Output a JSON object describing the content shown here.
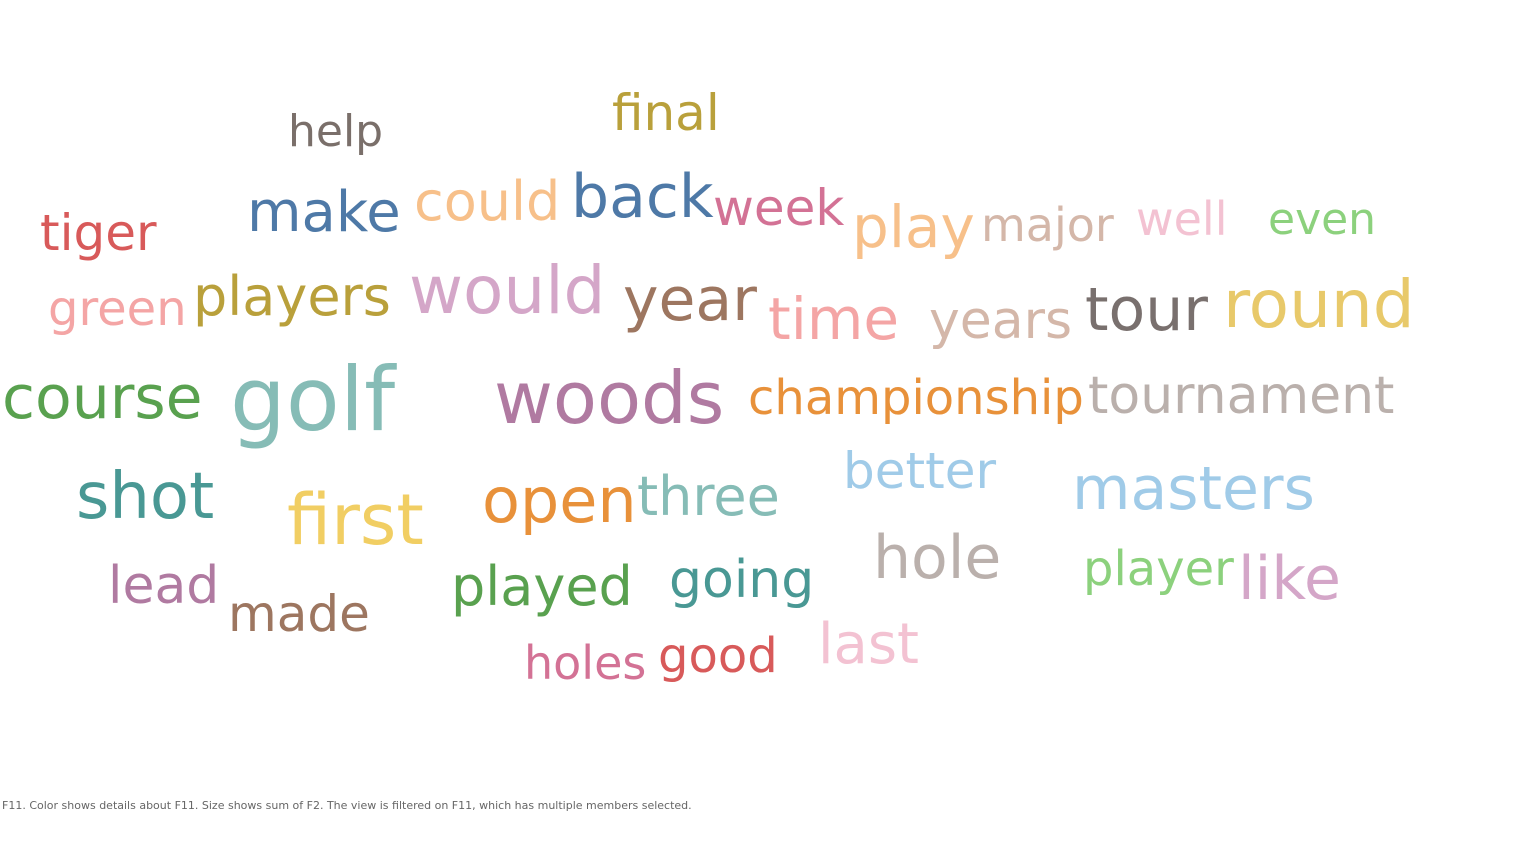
{
  "caption": "F11.  Color shows details about F11.  Size shows sum of F2. The view is filtered on F11, which has multiple members selected.",
  "chart_data": {
    "type": "word-cloud",
    "words": [
      {
        "text": "final",
        "color": "#b9a03b"
      },
      {
        "text": "help",
        "color": "#7a6f6a"
      },
      {
        "text": "tiger",
        "color": "#d85a5a"
      },
      {
        "text": "make",
        "color": "#4e79a7"
      },
      {
        "text": "could",
        "color": "#f7c08a"
      },
      {
        "text": "back",
        "color": "#4e79a7"
      },
      {
        "text": "week",
        "color": "#d37295"
      },
      {
        "text": "play",
        "color": "#f7c08a"
      },
      {
        "text": "major",
        "color": "#d4b7a9"
      },
      {
        "text": "well",
        "color": "#f3c2d2"
      },
      {
        "text": "even",
        "color": "#8cd17d"
      },
      {
        "text": "green",
        "color": "#f4a5a5"
      },
      {
        "text": "players",
        "color": "#b9a03b"
      },
      {
        "text": "would",
        "color": "#d4a6c8"
      },
      {
        "text": "year",
        "color": "#9d7660"
      },
      {
        "text": "time",
        "color": "#f4a5a5"
      },
      {
        "text": "years",
        "color": "#d4b7a9"
      },
      {
        "text": "tour",
        "color": "#79706e"
      },
      {
        "text": "round",
        "color": "#e8c96a"
      },
      {
        "text": "course",
        "color": "#59a14f"
      },
      {
        "text": "golf",
        "color": "#86bcb6"
      },
      {
        "text": "woods",
        "color": "#b07aa1"
      },
      {
        "text": "championship",
        "color": "#e8913a"
      },
      {
        "text": "tournament",
        "color": "#bab0ac"
      },
      {
        "text": "shot",
        "color": "#499894"
      },
      {
        "text": "first",
        "color": "#f1ce63"
      },
      {
        "text": "open",
        "color": "#e8913a"
      },
      {
        "text": "three",
        "color": "#86bcb6"
      },
      {
        "text": "better",
        "color": "#a0cbe8"
      },
      {
        "text": "masters",
        "color": "#a0cbe8"
      },
      {
        "text": "hole",
        "color": "#bab0ac"
      },
      {
        "text": "lead",
        "color": "#b07aa1"
      },
      {
        "text": "made",
        "color": "#9d7660"
      },
      {
        "text": "played",
        "color": "#59a14f"
      },
      {
        "text": "going",
        "color": "#499894"
      },
      {
        "text": "player",
        "color": "#8cd17d"
      },
      {
        "text": "like",
        "color": "#d4a6c8"
      },
      {
        "text": "holes",
        "color": "#d37295"
      },
      {
        "text": "good",
        "color": "#d85a5a"
      },
      {
        "text": "last",
        "color": "#f3c2d2"
      }
    ]
  }
}
